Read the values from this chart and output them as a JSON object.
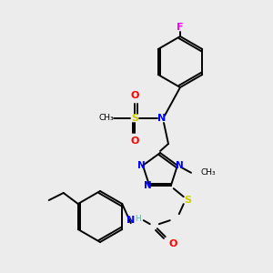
{
  "background_color": "#ececec",
  "atom_colors": {
    "N": "#0000FF",
    "O": "#FF0000",
    "S": "#cccc00",
    "F": "#FF00FF",
    "C": "#000000",
    "H": "#6aafaf"
  },
  "figsize": [
    3.0,
    3.0
  ],
  "dpi": 100
}
